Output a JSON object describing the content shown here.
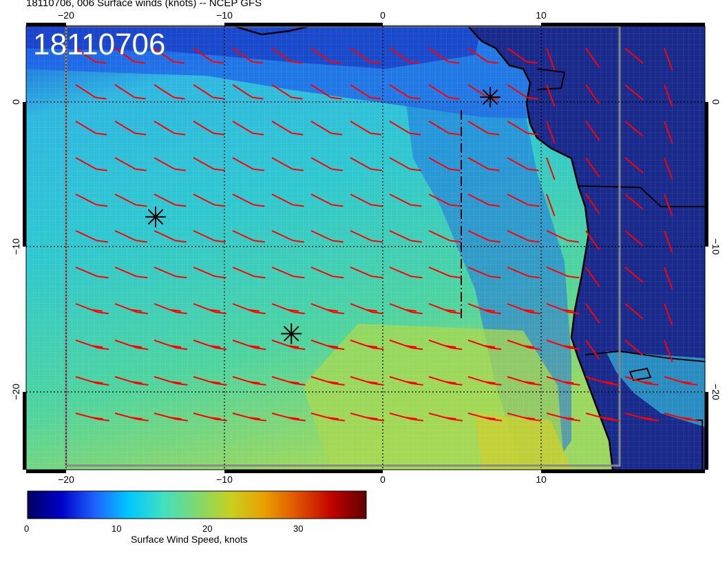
{
  "header": {
    "title": "18110706, 006 Surface winds (knots) -- NCEP GFS",
    "stamp": "18110706"
  },
  "map": {
    "top_ticks": [
      "−20",
      "−10",
      "0",
      "10"
    ],
    "bottom_ticks": [
      "−20",
      "−10",
      "0",
      "10"
    ],
    "left_ticks": [
      "0",
      "−10",
      "−20"
    ],
    "right_ticks": [
      "0",
      "−10",
      "−20"
    ],
    "lon_range": [
      -22.5,
      20.5
    ],
    "lat_range": [
      5,
      -25
    ],
    "storm_markers": [
      {
        "lon": -14.3,
        "lat": -7.9
      },
      {
        "lon": -5.7,
        "lat": -15.8
      },
      {
        "lon": 6.9,
        "lat": 0.2
      }
    ],
    "barb_color": "#ff0000",
    "land_color": "#1a2a8c"
  },
  "colorbar": {
    "label": "Surface Wind Speed, knots",
    "ticks": [
      "0",
      "10",
      "20",
      "30"
    ],
    "stops": [
      "#000060",
      "#0000c8",
      "#1e64ff",
      "#00c8ff",
      "#40e0c0",
      "#7fd870",
      "#c8d020",
      "#e8a000",
      "#e05000",
      "#c00000",
      "#600000"
    ],
    "max": 37.5
  }
}
